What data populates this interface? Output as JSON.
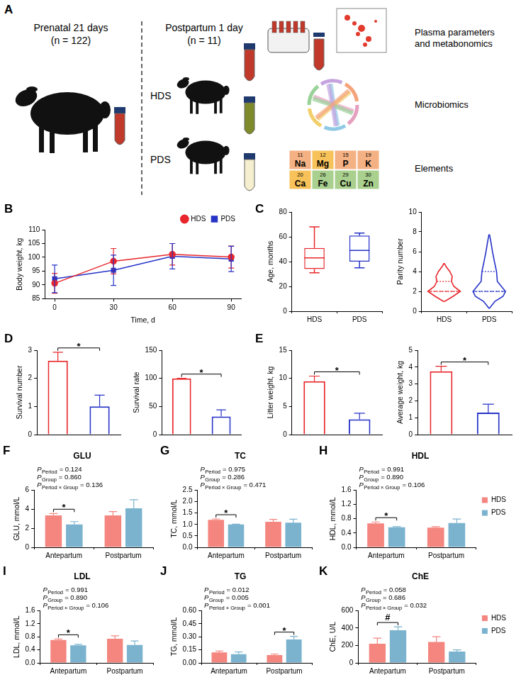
{
  "diagram": {
    "panel": "A",
    "prenatal": {
      "title": "Prenatal 21 days",
      "n": "(n = 122)"
    },
    "postpartum": {
      "title": "Postpartum 1 day",
      "n": "(n = 11)"
    },
    "groups": [
      "HDS",
      "PDS"
    ],
    "analyses": [
      "Plasma parameters and metabonomics",
      "Microbiomics",
      "Elements"
    ],
    "elements": [
      {
        "number": 11,
        "symbol": "Na",
        "color": "#f4b183"
      },
      {
        "number": 12,
        "symbol": "Mg",
        "color": "#f7c25a"
      },
      {
        "number": 15,
        "symbol": "P",
        "color": "#f4b183"
      },
      {
        "number": 19,
        "symbol": "K",
        "color": "#f4b183"
      },
      {
        "number": 20,
        "symbol": "Ca",
        "color": "#f7c25a"
      },
      {
        "number": 26,
        "symbol": "Fe",
        "color": "#a9d08e"
      },
      {
        "number": 29,
        "symbol": "Cu",
        "color": "#a9d08e"
      },
      {
        "number": 30,
        "symbol": "Zn",
        "color": "#a9d08e"
      }
    ]
  },
  "chart_data": [
    {
      "panel": "B",
      "type": "line",
      "x": [
        0,
        30,
        60,
        90
      ],
      "xlim": [
        -5,
        95
      ],
      "xticks": [
        0,
        30,
        60,
        90
      ],
      "ylim": [
        85,
        110
      ],
      "yticks": [
        85,
        90,
        95,
        100,
        105,
        110
      ],
      "x_label": "Time, d",
      "y_label": "Body weight, kg",
      "legend": "top-right",
      "series": [
        {
          "name": "HDS",
          "color": "#e8262b",
          "marker": "circle",
          "values": [
            90.6,
            98.6,
            101.1,
            100.1
          ],
          "errors": [
            3.6,
            4.6,
            3.9,
            4.0
          ]
        },
        {
          "name": "PDS",
          "color": "#2633c7",
          "marker": "square",
          "values": [
            92.2,
            95.3,
            100.4,
            99.4
          ],
          "errors": [
            5.0,
            5.5,
            4.6,
            4.6
          ]
        }
      ]
    },
    {
      "panel": "C",
      "type": "box",
      "categories": [
        "HDS",
        "PDS"
      ],
      "colors": [
        "#e8262b",
        "#2633c7"
      ],
      "ylim": [
        0,
        80
      ],
      "yticks": [
        0,
        20,
        40,
        60,
        80
      ],
      "y_label": "Age, months",
      "boxes": [
        {
          "min": 31,
          "q1": 34,
          "median": 43,
          "q3": 51,
          "max": 68
        },
        {
          "min": 35,
          "q1": 40,
          "median": 49,
          "q3": 61,
          "max": 63
        }
      ]
    },
    {
      "type": "violin",
      "categories": [
        "HDS",
        "PDS"
      ],
      "colors": [
        "#e8262b",
        "#2633c7"
      ],
      "ylim": [
        0,
        10
      ],
      "yticks": [
        0,
        2,
        4,
        6,
        8,
        10
      ],
      "y_label": "Parity number",
      "violin": [
        {
          "y": [
            1.0,
            1.5,
            2.0,
            2.5,
            3.0,
            3.5,
            4.0,
            4.5,
            4.8
          ],
          "density": [
            0.05,
            0.55,
            1.0,
            0.6,
            0.45,
            0.5,
            0.35,
            0.12,
            0.02
          ]
        },
        {
          "y": [
            0.3,
            1.0,
            1.5,
            2.0,
            2.5,
            3.0,
            4.0,
            5.0,
            6.0,
            7.0,
            7.7
          ],
          "density": [
            0.02,
            0.35,
            0.85,
            1.0,
            0.75,
            0.5,
            0.45,
            0.32,
            0.2,
            0.1,
            0.02
          ]
        }
      ],
      "quartiles": [
        [
          2,
          2,
          3
        ],
        [
          2,
          2,
          4
        ]
      ]
    },
    {
      "panel": "D",
      "type": "bar",
      "categories": [
        "HDS",
        "PDS"
      ],
      "colors": [
        "#e8262b",
        "#2633c7"
      ],
      "tick_labels": "y",
      "values": [
        2.63,
        1.0
      ],
      "errors": [
        0.3,
        0.4
      ],
      "ylim": [
        0,
        3
      ],
      "yticks": [
        0,
        1,
        2,
        3
      ],
      "y_label": "Survival number",
      "significance": [
        {
          "between": [
            "HDS",
            "PDS"
          ],
          "label": "*"
        }
      ]
    },
    {
      "type": "bar",
      "categories": [
        "HDS",
        "PDS"
      ],
      "colors": [
        "#e8262b",
        "#2633c7"
      ],
      "tick_labels": "y",
      "values": [
        100,
        32
      ],
      "errors": [
        0,
        12
      ],
      "ylim": [
        0,
        150
      ],
      "yticks": [
        0,
        50,
        100,
        150
      ],
      "y_label": "Survival rate",
      "significance": [
        {
          "between": [
            "HDS",
            "PDS"
          ],
          "label": "*"
        }
      ]
    },
    {
      "panel": "E",
      "type": "bar",
      "categories": [
        "HDS",
        "PDS"
      ],
      "colors": [
        "#e8262b",
        "#2633c7"
      ],
      "tick_labels": "y",
      "values": [
        9.5,
        2.7
      ],
      "errors": [
        0.9,
        1.1
      ],
      "ylim": [
        0,
        15
      ],
      "yticks": [
        0,
        5,
        10,
        15
      ],
      "y_label": "Litter weight, kg",
      "significance": [
        {
          "between": [
            "HDS",
            "PDS"
          ],
          "label": "*"
        }
      ]
    },
    {
      "type": "bar",
      "categories": [
        "HDS",
        "PDS"
      ],
      "colors": [
        "#e8262b",
        "#2633c7"
      ],
      "tick_labels": "y",
      "values": [
        3.75,
        1.3
      ],
      "errors": [
        0.3,
        0.5
      ],
      "ylim": [
        0,
        5
      ],
      "yticks": [
        0,
        1,
        2,
        3,
        4,
        5
      ],
      "y_label": "Average weight, kg",
      "significance": [
        {
          "between": [
            "HDS",
            "PDS"
          ],
          "label": "*"
        }
      ]
    },
    {
      "panel": "F",
      "type": "bar",
      "title": "GLU",
      "categories": [
        "Antepartum",
        "Postpartum"
      ],
      "series": [
        {
          "name": "HDS",
          "color": "#f4857f",
          "values": [
            3.35,
            3.35
          ],
          "errors": [
            0.2,
            0.4
          ]
        },
        {
          "name": "PDS",
          "color": "#7bb3cf",
          "values": [
            2.4,
            4.1
          ],
          "errors": [
            0.3,
            0.9
          ]
        }
      ],
      "ylim": [
        0,
        6
      ],
      "yticks": [
        0,
        2,
        4,
        6
      ],
      "y_label": "GLU, mmol/L",
      "p_values": [
        {
          "symbol": "P",
          "term": "Period",
          "text": "= 0.124"
        },
        {
          "symbol": "P",
          "term": "Group",
          "text": "= 0.860"
        },
        {
          "symbol": "P",
          "term": "Period × Group",
          "text": "= 0.136"
        }
      ],
      "significance": [
        {
          "category": "Antepartum",
          "label": "*"
        }
      ]
    },
    {
      "panel": "G",
      "type": "bar",
      "title": "TC",
      "categories": [
        "Antepartum",
        "Postpartum"
      ],
      "series": [
        {
          "name": "HDS",
          "color": "#f4857f",
          "values": [
            1.2,
            1.12
          ],
          "errors": [
            0.04,
            0.1
          ]
        },
        {
          "name": "PDS",
          "color": "#7bb3cf",
          "values": [
            1.0,
            1.08
          ],
          "errors": [
            0.01,
            0.15
          ]
        }
      ],
      "ylim": [
        0,
        2.5
      ],
      "yticks": [
        {
          "value": 0,
          "label": "0.0"
        },
        0.5,
        {
          "value": 1,
          "label": "1.0"
        },
        1.5,
        {
          "value": 2,
          "label": "2.0"
        },
        2.5
      ],
      "y_label": "TC, mmol/L",
      "p_values": [
        {
          "symbol": "P",
          "term": "Period",
          "text": "= 0.975"
        },
        {
          "symbol": "P",
          "term": "Group",
          "text": "= 0.286"
        },
        {
          "symbol": "P",
          "term": "Period × Group",
          "text": "= 0.471"
        }
      ],
      "significance": [
        {
          "category": "Antepartum",
          "label": "*"
        }
      ]
    },
    {
      "panel": "H",
      "type": "bar",
      "title": "HDL",
      "categories": [
        "Antepartum",
        "Postpartum"
      ],
      "legend": "right",
      "series": [
        {
          "name": "HDS",
          "color": "#f4857f",
          "values": [
            0.67,
            0.55
          ],
          "errors": [
            0.04,
            0.03
          ]
        },
        {
          "name": "PDS",
          "color": "#7bb3cf",
          "values": [
            0.56,
            0.68
          ],
          "errors": [
            0.02,
            0.11
          ]
        }
      ],
      "ylim": [
        0,
        1.6
      ],
      "yticks": [
        {
          "value": 0,
          "label": "0.0"
        },
        0.4,
        0.8,
        1.2,
        1.6
      ],
      "y_label": "HDL, mmol/L",
      "p_values": [
        {
          "symbol": "P",
          "term": "Period",
          "text": "= 0.991"
        },
        {
          "symbol": "P",
          "term": "Group",
          "text": "= 0.890"
        },
        {
          "symbol": "P",
          "term": "Period × Group",
          "text": "= 0.106"
        }
      ],
      "significance": [
        {
          "category": "Antepartum",
          "label": "*"
        }
      ]
    },
    {
      "panel": "I",
      "type": "bar",
      "title": "LDL",
      "categories": [
        "Antepartum",
        "Postpartum"
      ],
      "series": [
        {
          "name": "HDS",
          "color": "#f4857f",
          "values": [
            0.7,
            0.74
          ],
          "errors": [
            0.03,
            0.09
          ]
        },
        {
          "name": "PDS",
          "color": "#7bb3cf",
          "values": [
            0.54,
            0.55
          ],
          "errors": [
            0.03,
            0.12
          ]
        }
      ],
      "ylim": [
        0,
        1.6
      ],
      "yticks": [
        {
          "value": 0,
          "label": "0.0"
        },
        0.4,
        0.8,
        1.2,
        1.6
      ],
      "y_label": "LDL, mmol/L",
      "p_values": [
        {
          "symbol": "P",
          "term": "Period",
          "text": "= 0.991"
        },
        {
          "symbol": "P",
          "term": "Group",
          "text": "= 0.890"
        },
        {
          "symbol": "P",
          "term": "Period × Group",
          "text": "= 0.106"
        }
      ],
      "significance": [
        {
          "category": "Antepartum",
          "label": "*"
        }
      ]
    },
    {
      "panel": "J",
      "type": "bar",
      "title": "TG",
      "categories": [
        "Antepartum",
        "Postpartum"
      ],
      "series": [
        {
          "name": "HDS",
          "color": "#f4857f",
          "values": [
            0.12,
            0.09
          ],
          "errors": [
            0.015,
            0.012
          ]
        },
        {
          "name": "PDS",
          "color": "#7bb3cf",
          "values": [
            0.1,
            0.27
          ],
          "errors": [
            0.025,
            0.035
          ]
        }
      ],
      "ylim": [
        0,
        0.6
      ],
      "yticks": [
        {
          "value": 0,
          "label": "0.00"
        },
        0.15,
        {
          "value": 0.3,
          "label": "0.30"
        },
        0.45,
        {
          "value": 0.6,
          "label": "0.60"
        }
      ],
      "y_label": "TG, mmol/L",
      "p_values": [
        {
          "symbol": "P",
          "term": "Period",
          "text": "= 0.012"
        },
        {
          "symbol": "P",
          "term": "Group",
          "text": "= 0.005"
        },
        {
          "symbol": "P",
          "term": "Period × Group",
          "text": "= 0.001"
        }
      ],
      "significance": [
        {
          "category": "Postpartum",
          "label": "*"
        }
      ]
    },
    {
      "panel": "K",
      "type": "bar",
      "title": "ChE",
      "categories": [
        "Antepartum",
        "Postpartum"
      ],
      "legend": "right",
      "series": [
        {
          "name": "HDS",
          "color": "#f4857f",
          "values": [
            220,
            240
          ],
          "errors": [
            65,
            60
          ]
        },
        {
          "name": "PDS",
          "color": "#7bb3cf",
          "values": [
            375,
            130
          ],
          "errors": [
            40,
            20
          ]
        }
      ],
      "ylim": [
        0,
        600
      ],
      "yticks": [
        0,
        200,
        400,
        600
      ],
      "y_label": "ChE, U/L",
      "p_values": [
        {
          "symbol": "P",
          "term": "Period",
          "text": "= 0.058"
        },
        {
          "symbol": "P",
          "term": "Group",
          "text": "= 0.686"
        },
        {
          "symbol": "P",
          "term": "Period × Group",
          "text": "= 0.032"
        }
      ],
      "significance": [
        {
          "category": "Antepartum",
          "label": "#"
        }
      ]
    }
  ]
}
